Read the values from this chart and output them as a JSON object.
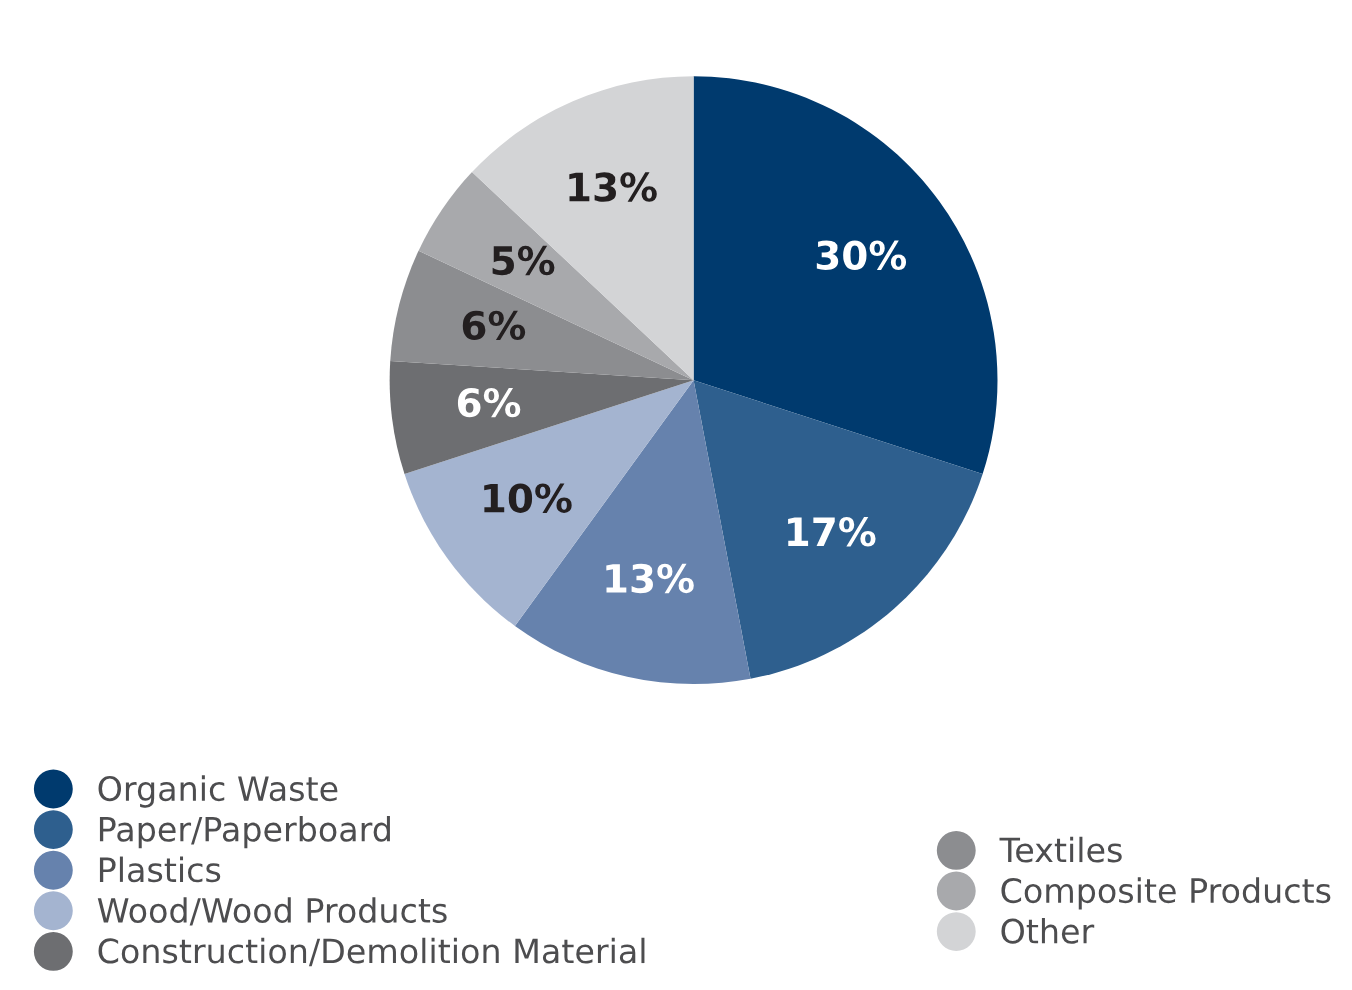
{
  "chart_data": {
    "type": "pie",
    "categories": [
      "Organic Waste",
      "Paper/Paperboard",
      "Plastics",
      "Wood/Wood Products",
      "Construction/Demolition Material",
      "Textiles",
      "Composite Products",
      "Other"
    ],
    "values": [
      30,
      17,
      13,
      10,
      6,
      6,
      5,
      13
    ],
    "colors": [
      "#003a6e",
      "#2e5f8e",
      "#6682ad",
      "#a4b4d0",
      "#6d6e71",
      "#8c8d90",
      "#a8a9ac",
      "#d3d4d6"
    ],
    "value_labels": [
      "30%",
      "17%",
      "13%",
      "10%",
      "6%",
      "6%",
      "5%",
      "13%"
    ],
    "legend": "bottom"
  }
}
